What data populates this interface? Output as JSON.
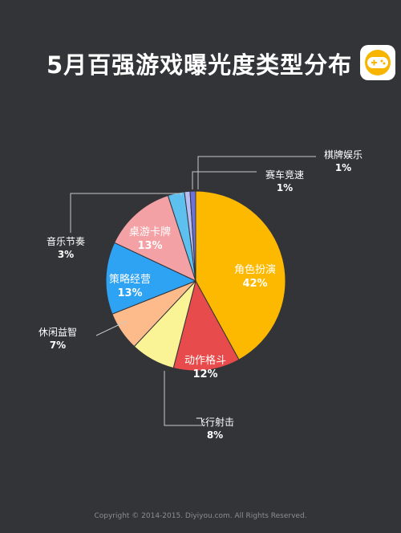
{
  "header": {
    "title": "5月百强游戏曝光度类型分布",
    "logo_icon": "gamepad-icon"
  },
  "chart_data": {
    "type": "pie",
    "title": "5月百强游戏曝光度类型分布",
    "start_angle_deg": 0,
    "direction": "clockwise",
    "slices": [
      {
        "label": "角色扮演",
        "pct": "42%",
        "value": 42,
        "color": "#fdb900",
        "text_color": "#ffffff",
        "placement": "inside"
      },
      {
        "label": "动作格斗",
        "pct": "12%",
        "value": 12,
        "color": "#e84b4b",
        "text_color": "#ffffff",
        "placement": "inside"
      },
      {
        "label": "飞行射击",
        "pct": "8%",
        "value": 8,
        "color": "#fbf497",
        "text_color": "#ffffff",
        "placement": "outside"
      },
      {
        "label": "休闲益智",
        "pct": "7%",
        "value": 7,
        "color": "#fdbb8c",
        "text_color": "#ffffff",
        "placement": "outside"
      },
      {
        "label": "策略经营",
        "pct": "13%",
        "value": 13,
        "color": "#2ea2f3",
        "text_color": "#ffffff",
        "placement": "inside"
      },
      {
        "label": "桌游卡牌",
        "pct": "13%",
        "value": 13,
        "color": "#f4a1a5",
        "text_color": "#ffffff",
        "placement": "inside"
      },
      {
        "label": "音乐节奏",
        "pct": "3%",
        "value": 3,
        "color": "#5ec0ee",
        "text_color": "#ffffff",
        "placement": "outside"
      },
      {
        "label": "赛车竞速",
        "pct": "1%",
        "value": 1,
        "color": "#b9bdf5",
        "text_color": "#ffffff",
        "placement": "outside"
      },
      {
        "label": "棋牌娱乐",
        "pct": "1%",
        "value": 1,
        "color": "#6b73d8",
        "text_color": "#ffffff",
        "placement": "outside"
      }
    ],
    "legend": "none",
    "grid": false
  },
  "footer": {
    "copyright": "Copyright © 2014-2015. Diyiyou.com. All Rights Reserved."
  }
}
